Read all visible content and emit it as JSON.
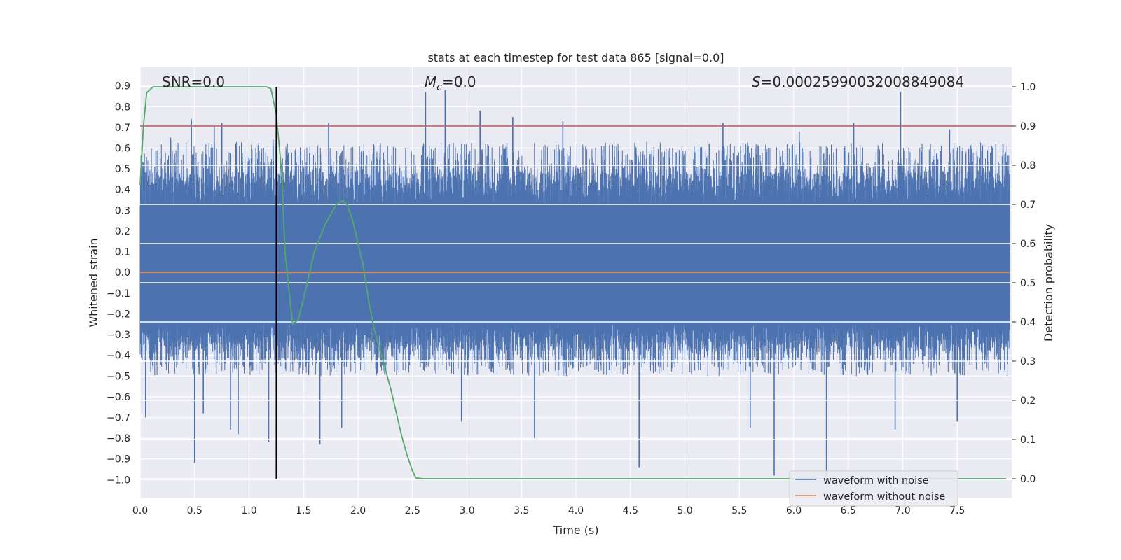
{
  "chart_data": {
    "type": "line",
    "title": "stats at each timestep for test data 865 [signal=0.0]",
    "xlabel": "Time (s)",
    "ylabel_left": "Whitened strain",
    "ylabel_right": "Detection probability",
    "xlim": [
      0.0,
      8.0
    ],
    "ylim_left": [
      -1.09,
      0.99
    ],
    "ylim_right": [
      -0.05,
      1.05
    ],
    "x_ticks": [
      "0.0",
      "0.5",
      "1.0",
      "1.5",
      "2.0",
      "2.5",
      "3.0",
      "3.5",
      "4.0",
      "4.5",
      "5.0",
      "5.5",
      "6.0",
      "6.5",
      "7.0",
      "7.5"
    ],
    "y_left_ticks": [
      "0.9",
      "0.8",
      "0.7",
      "0.6",
      "0.5",
      "0.4",
      "0.3",
      "0.2",
      "0.1",
      "0.0",
      "−0.1",
      "−0.2",
      "−0.3",
      "−0.4",
      "−0.5",
      "−0.6",
      "−0.7",
      "−0.8",
      "−0.9",
      "−1.0"
    ],
    "y_right_ticks": [
      "1.0",
      "0.9",
      "0.8",
      "0.7",
      "0.6",
      "0.5",
      "0.4",
      "0.3",
      "0.2",
      "0.1",
      "0.0"
    ],
    "annotations": {
      "snr": "SNR=0.0",
      "mc_symbol": "M",
      "mc_subscript": "c",
      "mc_value": "=0.0",
      "s_symbol": "S",
      "s_value": "=0.00025990032008849084"
    },
    "threshold_line": {
      "axis": "right",
      "value": 0.9,
      "color": "#c44e52"
    },
    "marker_vline": {
      "x": 1.25,
      "color": "#000000"
    },
    "noise_band": {
      "core_range": [
        -0.24,
        0.32
      ],
      "typical_range": [
        -0.5,
        0.63
      ],
      "extreme_range": [
        -0.98,
        0.88
      ],
      "color": "#4c72b0"
    },
    "spikes": [
      {
        "x": 0.05,
        "y": -0.7
      },
      {
        "x": 0.28,
        "y": 0.65
      },
      {
        "x": 0.47,
        "y": 0.74
      },
      {
        "x": 0.5,
        "y": -0.92
      },
      {
        "x": 0.58,
        "y": -0.68
      },
      {
        "x": 0.68,
        "y": 0.71
      },
      {
        "x": 0.75,
        "y": 0.72
      },
      {
        "x": 0.83,
        "y": -0.76
      },
      {
        "x": 0.9,
        "y": -0.78
      },
      {
        "x": 1.18,
        "y": -0.82
      },
      {
        "x": 1.22,
        "y": 0.64
      },
      {
        "x": 1.65,
        "y": -0.83
      },
      {
        "x": 1.73,
        "y": 0.72
      },
      {
        "x": 1.85,
        "y": -0.75
      },
      {
        "x": 2.62,
        "y": 0.87
      },
      {
        "x": 2.8,
        "y": 0.88
      },
      {
        "x": 2.95,
        "y": -0.72
      },
      {
        "x": 3.12,
        "y": 0.78
      },
      {
        "x": 3.42,
        "y": 0.75
      },
      {
        "x": 3.62,
        "y": -0.8
      },
      {
        "x": 3.88,
        "y": 0.73
      },
      {
        "x": 4.58,
        "y": -0.94
      },
      {
        "x": 4.78,
        "y": 0.02
      },
      {
        "x": 4.8,
        "y": -0.22
      },
      {
        "x": 5.35,
        "y": 0.72
      },
      {
        "x": 5.6,
        "y": -0.75
      },
      {
        "x": 5.82,
        "y": -0.98
      },
      {
        "x": 6.05,
        "y": 0.68
      },
      {
        "x": 6.3,
        "y": -0.99
      },
      {
        "x": 6.55,
        "y": 0.72
      },
      {
        "x": 6.98,
        "y": 0.87
      },
      {
        "x": 6.93,
        "y": -0.76
      },
      {
        "x": 7.43,
        "y": 0.69
      },
      {
        "x": 7.5,
        "y": -0.72
      },
      {
        "x": 7.92,
        "y": 0.62
      }
    ],
    "series": [
      {
        "name": "waveform with noise",
        "axis": "left",
        "color": "#4c72b0",
        "render": "dense-noise"
      },
      {
        "name": "waveform without noise",
        "axis": "left",
        "color": "#dd8452",
        "x": [
          0.0,
          7.98
        ],
        "y": [
          0.0,
          0.0
        ]
      },
      {
        "name": "detection probability",
        "axis": "right",
        "color": "#55a868",
        "x": [
          0.0,
          0.03,
          0.06,
          0.12,
          0.25,
          0.5,
          0.8,
          1.0,
          1.1,
          1.16,
          1.2,
          1.25,
          1.3,
          1.33,
          1.37,
          1.4,
          1.45,
          1.5,
          1.6,
          1.7,
          1.8,
          1.86,
          1.9,
          1.95,
          2.0,
          2.05,
          2.1,
          2.15,
          2.2,
          2.25,
          2.3,
          2.35,
          2.4,
          2.45,
          2.5,
          2.53,
          2.6,
          3.0,
          4.0,
          5.0,
          6.0,
          7.0,
          7.95
        ],
        "y": [
          0.75,
          0.9,
          0.985,
          1.0,
          1.0,
          1.0,
          1.0,
          1.0,
          1.0,
          1.0,
          0.995,
          0.93,
          0.78,
          0.58,
          0.47,
          0.395,
          0.405,
          0.46,
          0.58,
          0.65,
          0.7,
          0.71,
          0.7,
          0.66,
          0.6,
          0.54,
          0.45,
          0.38,
          0.33,
          0.28,
          0.23,
          0.17,
          0.11,
          0.06,
          0.02,
          0.002,
          0.0,
          0.0,
          0.0,
          0.0,
          0.0,
          0.0,
          0.0
        ]
      }
    ],
    "legend": {
      "location": "lower-right",
      "entries": [
        {
          "label": "waveform with noise",
          "color": "#4c72b0"
        },
        {
          "label": "waveform without noise",
          "color": "#dd8452"
        }
      ]
    }
  }
}
